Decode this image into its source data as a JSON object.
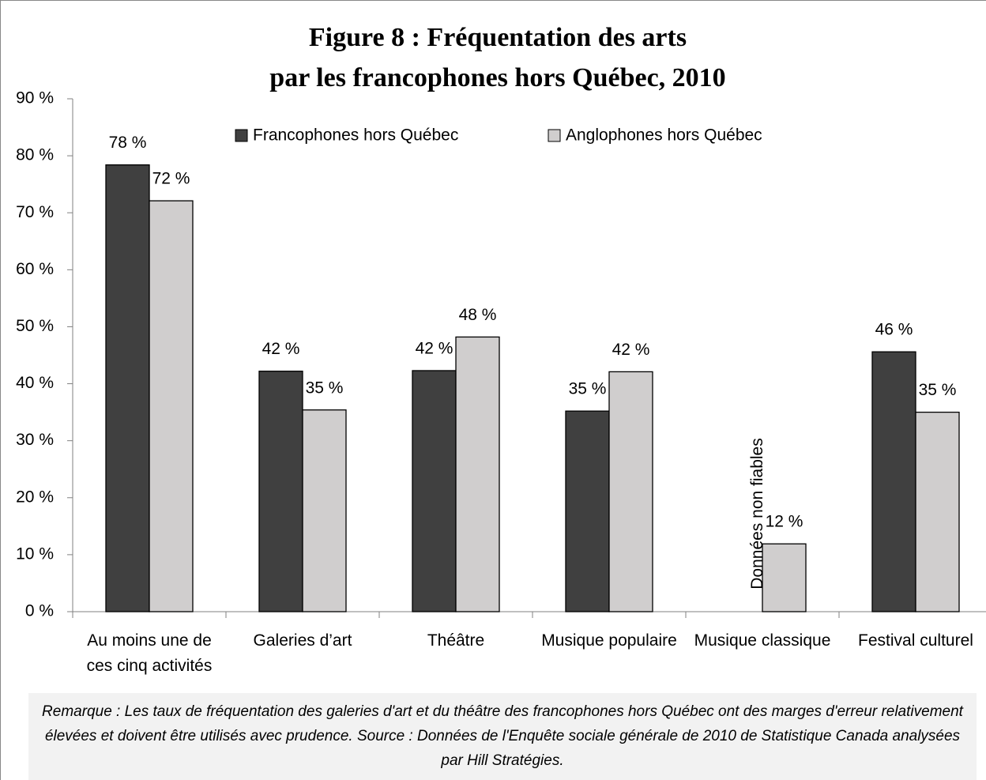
{
  "chart_data": {
    "type": "bar",
    "title": [
      "Figure 8 : Fréquentation des arts",
      "par les francophones hors Québec, 2010"
    ],
    "categories": [
      "Au moins une de ces cinq activités",
      "Galeries d’art",
      "Théâtre",
      "Musique populaire",
      "Musique classique",
      "Festival culturel"
    ],
    "series": [
      {
        "name": "Francophones hors Québec",
        "color": "#404040",
        "values": [
          78.4,
          42.2,
          42.3,
          35.2,
          null,
          45.6
        ],
        "value_labels": [
          "78 %",
          "42 %",
          "42 %",
          "35 %",
          null,
          "46 %"
        ]
      },
      {
        "name": "Anglophones hors Québec",
        "color": "#d0cece",
        "values": [
          72.1,
          35.4,
          48.2,
          42.1,
          11.9,
          35.0
        ],
        "value_labels": [
          "72 %",
          "35 %",
          "48 %",
          "42 %",
          "12 %",
          "35 %"
        ]
      }
    ],
    "annotation": "Données non fiables",
    "ylim": [
      0,
      90
    ],
    "yticks": [
      {
        "value": 0,
        "label": "0 %"
      },
      {
        "value": 10,
        "label": "10 %"
      },
      {
        "value": 20,
        "label": "20 %"
      },
      {
        "value": 30,
        "label": "30 %"
      },
      {
        "value": 40,
        "label": "40 %"
      },
      {
        "value": 50,
        "label": "50 %"
      },
      {
        "value": 60,
        "label": "60 %"
      },
      {
        "value": 70,
        "label": "70 %"
      },
      {
        "value": 80,
        "label": "80 %"
      },
      {
        "value": 90,
        "label": "90 %"
      }
    ],
    "grid": false,
    "legend": "top",
    "note": "Remarque : Les taux de fréquentation des galeries d'art et du théâtre des francophones hors Québec ont des marges d'erreur relativement élevées et doivent être utilisés avec prudence. Source : Données de l'Enquête sociale générale de 2010 de Statistique Canada analysées par Hill Stratégies."
  }
}
